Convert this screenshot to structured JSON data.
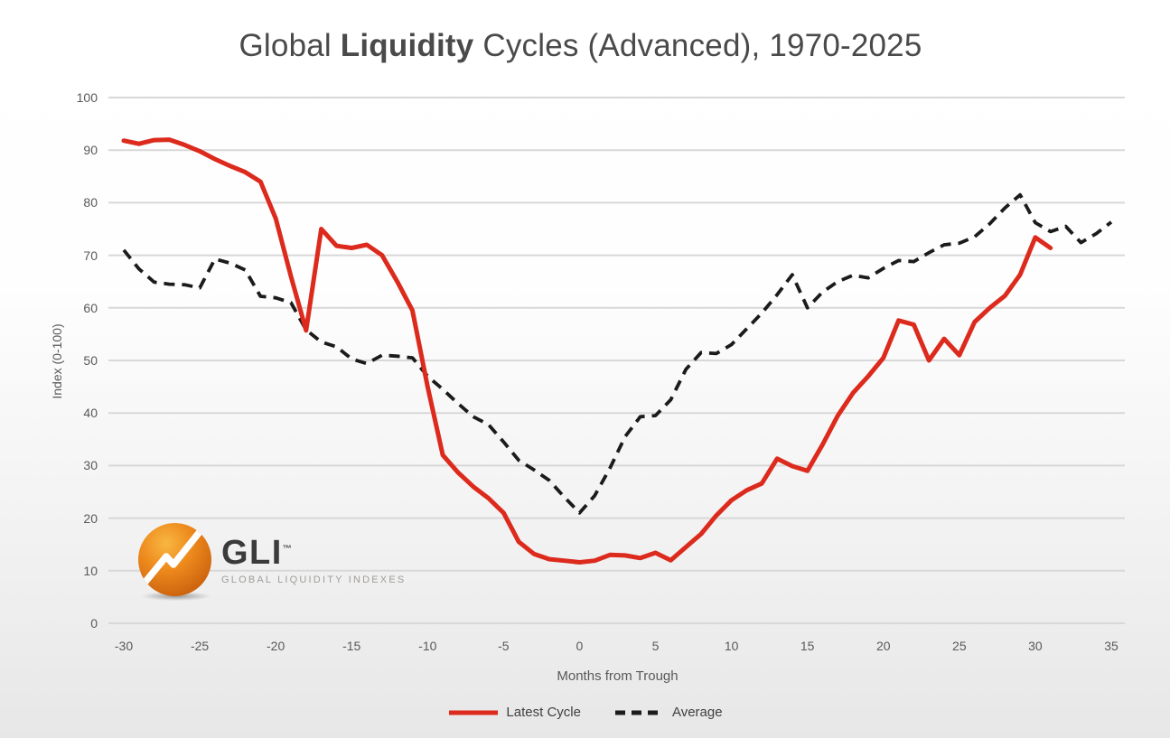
{
  "title": {
    "prefix": "Global ",
    "bold": "Liquidity",
    "suffix": " Cycles (Advanced), 1970-2025"
  },
  "logo": {
    "text": "GLI",
    "tm": "™",
    "subtext": "GLOBAL LIQUIDITY INDEXES",
    "ball_color": "#ee8b1d"
  },
  "chart_data": {
    "type": "line",
    "title": "Global Liquidity Cycles (Advanced), 1970-2025",
    "xlabel": "Months from Trough",
    "ylabel": "Index (0-100)",
    "xlim": [
      -30,
      35
    ],
    "ylim": [
      0,
      100
    ],
    "x_ticks": [
      -30,
      -25,
      -20,
      -15,
      -10,
      -5,
      0,
      5,
      10,
      15,
      20,
      25,
      30,
      35
    ],
    "y_ticks": [
      0,
      10,
      20,
      30,
      40,
      50,
      60,
      70,
      80,
      90,
      100
    ],
    "grid": "horizontal",
    "grid_color": "#d8d8d8",
    "tick_color": "#595959",
    "legend_position": "bottom",
    "series": [
      {
        "name": "Latest Cycle",
        "color": "#dc2a1d",
        "style": "solid",
        "x": [
          -30,
          -29,
          -28,
          -27,
          -26,
          -25,
          -24,
          -23,
          -22,
          -21,
          -20,
          -19,
          -18,
          -17,
          -16,
          -15,
          -14,
          -13,
          -12,
          -11,
          -10,
          -9,
          -8,
          -7,
          -6,
          -5,
          -4,
          -3,
          -2,
          -1,
          0,
          1,
          2,
          3,
          4,
          5,
          6,
          7,
          8,
          9,
          10,
          11,
          12,
          13,
          14,
          15,
          16,
          17,
          18,
          19,
          20,
          21,
          22,
          23,
          24,
          25,
          26,
          27,
          28,
          29,
          30,
          31
        ],
        "values": [
          91.8,
          91.2,
          91.9,
          92,
          91,
          89.8,
          88.3,
          87,
          85.8,
          84,
          77,
          66,
          55.7,
          75,
          71.8,
          71.4,
          72,
          70,
          65,
          59.5,
          45,
          32,
          28.7,
          26,
          23.8,
          21,
          15.5,
          13.2,
          12.2,
          11.9,
          11.6,
          11.9,
          13,
          12.9,
          12.4,
          13.4,
          12,
          14.5,
          17,
          20.5,
          23.4,
          25.3,
          26.6,
          31.3,
          29.9,
          29,
          34,
          39.5,
          43.8,
          47,
          50.5,
          57.6,
          56.8,
          50,
          54.1,
          51,
          57.3,
          60,
          62.3,
          66.3,
          73.4,
          71.4
        ]
      },
      {
        "name": "Average",
        "color": "#1b1b1b",
        "style": "dashed",
        "x": [
          -30,
          -29,
          -28,
          -27,
          -26,
          -25,
          -24,
          -23,
          -22,
          -21,
          -20,
          -19,
          -18,
          -17,
          -16,
          -15,
          -14,
          -13,
          -12,
          -11,
          -10,
          -9,
          -8,
          -7,
          -6,
          -5,
          -4,
          -3,
          -2,
          -1,
          0,
          1,
          2,
          3,
          4,
          5,
          6,
          7,
          8,
          9,
          10,
          11,
          12,
          13,
          14,
          15,
          16,
          17,
          18,
          19,
          20,
          21,
          22,
          23,
          24,
          25,
          26,
          27,
          28,
          29,
          30,
          31,
          32,
          33,
          34,
          35
        ],
        "values": [
          71,
          67.4,
          64.9,
          64.5,
          64.4,
          63.8,
          69.3,
          68.5,
          67.2,
          62.2,
          61.9,
          61,
          55.8,
          53.5,
          52.6,
          50.3,
          49.4,
          51,
          50.8,
          50.5,
          47,
          44.5,
          41.8,
          39.3,
          37.8,
          34.5,
          31,
          29.2,
          27.2,
          24,
          21,
          24.3,
          29.5,
          35.5,
          39.3,
          39.5,
          42.5,
          48.3,
          51.5,
          51.3,
          53,
          56,
          59,
          62.5,
          66.3,
          60,
          63,
          65,
          66.2,
          65.7,
          67.5,
          69,
          68.8,
          70.5,
          72,
          72.3,
          73.5,
          76,
          79,
          81.5,
          76.2,
          74.5,
          75.5,
          72.4,
          74.1,
          76.3
        ]
      }
    ]
  }
}
